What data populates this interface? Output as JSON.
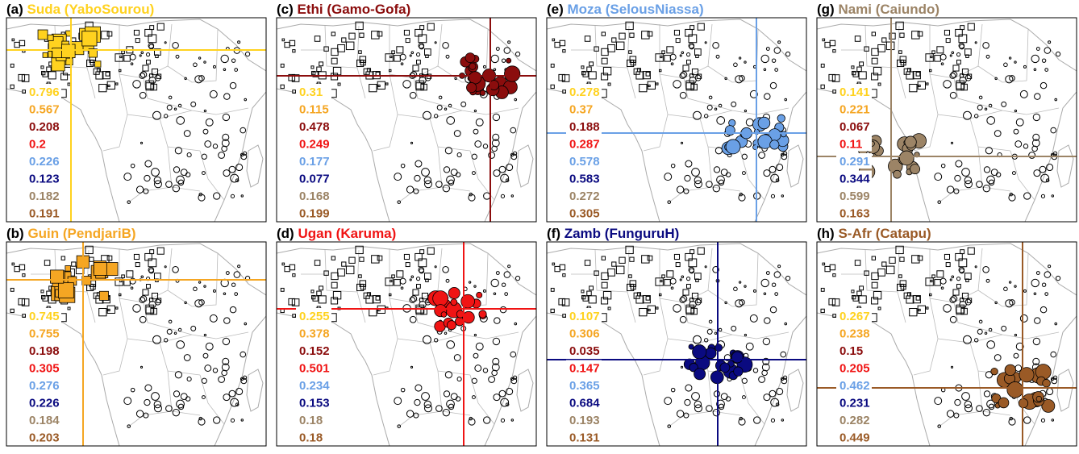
{
  "panels": [
    {
      "letter": "(a)",
      "name": "Suda (YaboSourou)",
      "color": "#ffd21f",
      "marker": "square",
      "values": [
        0.796,
        0.567,
        0.208,
        0.2,
        0.226,
        0.123,
        0.182,
        0.191
      ]
    },
    {
      "letter": "(b)",
      "name": "Guin (PendjariB)",
      "color": "#f5a623",
      "marker": "square",
      "values": [
        0.745,
        0.755,
        0.198,
        0.305,
        0.276,
        0.226,
        0.184,
        0.203
      ]
    },
    {
      "letter": "(c)",
      "name": "Ethi (Gamo-Gofa)",
      "color": "#8b0d0d",
      "marker": "circle",
      "values": [
        0.31,
        0.115,
        0.478,
        0.249,
        0.177,
        0.077,
        0.168,
        0.199
      ]
    },
    {
      "letter": "(d)",
      "name": "Ugan (Karuma)",
      "color": "#f01414",
      "marker": "circle",
      "values": [
        0.255,
        0.378,
        0.152,
        0.501,
        0.234,
        0.153,
        0.18,
        0.18
      ]
    },
    {
      "letter": "(e)",
      "name": "Moza (SelousNiassa)",
      "color": "#6aa0e6",
      "marker": "circle",
      "values": [
        0.278,
        0.37,
        0.188,
        0.287,
        0.578,
        0.583,
        0.272,
        0.305
      ]
    },
    {
      "letter": "(f)",
      "name": "Zamb (FunguruH)",
      "color": "#0a0a80",
      "marker": "circle",
      "values": [
        0.107,
        0.306,
        0.035,
        0.147,
        0.365,
        0.684,
        0.193,
        0.131
      ]
    },
    {
      "letter": "(g)",
      "name": "Nami (Caiundo)",
      "color": "#9c8466",
      "marker": "circle",
      "values": [
        0.141,
        0.221,
        0.067,
        0.11,
        0.291,
        0.344,
        0.599,
        0.163
      ]
    },
    {
      "letter": "(h)",
      "name": "S-Afr (Catapu)",
      "color": "#9a5a26",
      "marker": "circle",
      "values": [
        0.267,
        0.238,
        0.15,
        0.205,
        0.462,
        0.231,
        0.282,
        0.449
      ]
    }
  ]
}
